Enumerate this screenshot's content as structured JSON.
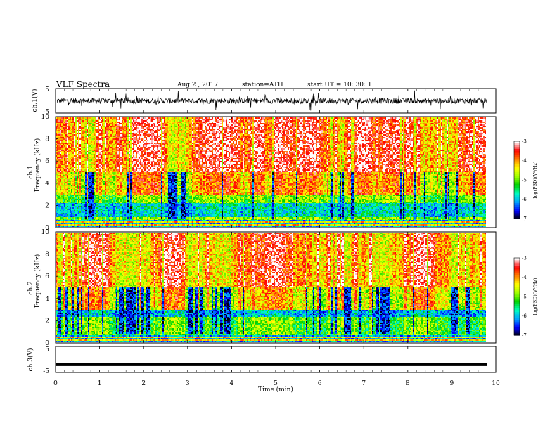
{
  "header": {
    "title": "VLF  Spectra",
    "date": "Aug.2  , 2017",
    "station": "station=ATH",
    "start_ut": "start  UT  =    10: 30: 1"
  },
  "colors": {
    "spectrogram_scale": [
      "#000000",
      "#0000ff",
      "#00a0ff",
      "#00ffc0",
      "#00d000",
      "#a0ff00",
      "#ffff00",
      "#ff8000",
      "#ff0000",
      "#ffffff"
    ],
    "trace": "#000000"
  },
  "chart_data": [
    {
      "type": "line",
      "panel": "ch1",
      "ylabel": "ch.1(V)",
      "ylim": [
        -5,
        5
      ],
      "yticks": [
        "5",
        "-5"
      ],
      "xlim": [
        0,
        10
      ],
      "description": "noisy waveform centered near 0 V"
    },
    {
      "type": "heatmap",
      "panel": "ch1-spectrogram",
      "ylabel_lines": [
        "ch.1",
        "Frequency  (kHz)"
      ],
      "ylim": [
        0,
        10
      ],
      "yticks": [
        "0",
        "2",
        "4",
        "6",
        "8",
        "10"
      ],
      "xlim": [
        0,
        10
      ],
      "colorbar": {
        "label": "log(PSD)(V²/Hz)",
        "range": [
          -7,
          -3
        ],
        "ticks": [
          "-3",
          "-4",
          "-5",
          "-6",
          "-7"
        ]
      }
    },
    {
      "type": "heatmap",
      "panel": "ch2-spectrogram",
      "ylabel_lines": [
        "ch.2",
        "Frequency  (kHz)"
      ],
      "ylim": [
        0,
        10
      ],
      "yticks": [
        "0",
        "2",
        "4",
        "6",
        "8",
        "10"
      ],
      "xlim": [
        0,
        10
      ],
      "colorbar": {
        "label": "log(PSD)(V²/Hz)",
        "range": [
          -7,
          -3
        ],
        "ticks": [
          "-3",
          "-4",
          "-5",
          "-6",
          "-7"
        ]
      }
    },
    {
      "type": "line",
      "panel": "ch3",
      "ylabel": "ch.3(V)",
      "ylim": [
        -5,
        5
      ],
      "yticks": [
        "5",
        "-5"
      ],
      "xlim": [
        0,
        10
      ],
      "values_approx": {
        "constant_level_V": -2
      }
    }
  ],
  "xaxis": {
    "label": "Time  (min)",
    "ticks": [
      "0",
      "1",
      "2",
      "3",
      "4",
      "5",
      "6",
      "7",
      "8",
      "9",
      "10"
    ],
    "data_end_min": 9.8
  }
}
